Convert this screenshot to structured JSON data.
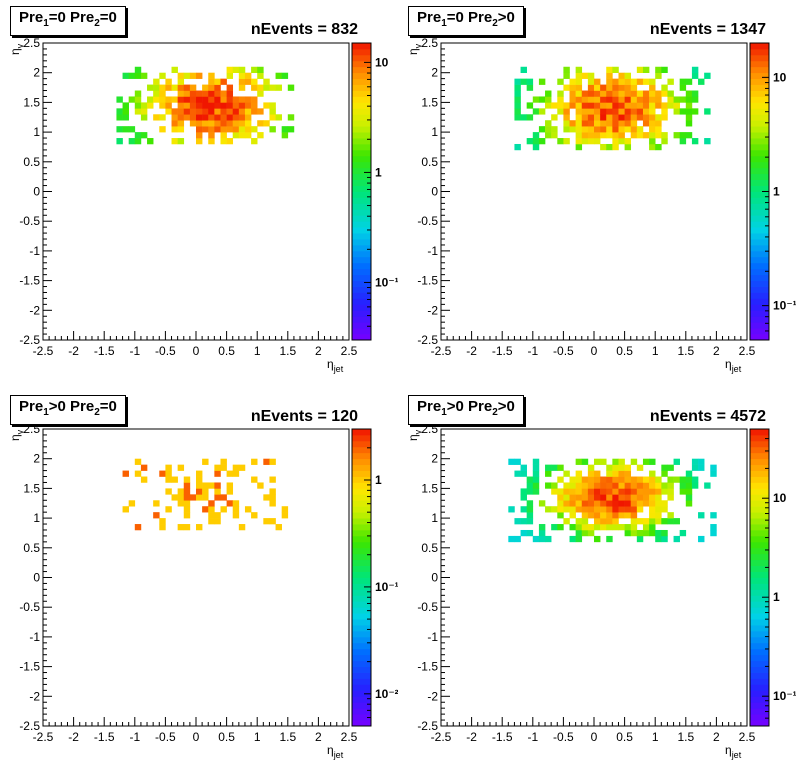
{
  "chart_data": [
    {
      "type": "heatmap",
      "label_main": "Pre",
      "label_sub1": "1",
      "label_mid": "=0  Pre",
      "label_sub2": "2",
      "label_tail": "=0",
      "nevents_text": "nEvents = 832",
      "xlabel_main": "η",
      "xlabel_sub": "jet",
      "ylabel_main": "η",
      "ylabel_sub": "γ",
      "xlim": [
        -2.5,
        2.5
      ],
      "ylim": [
        -2.5,
        2.5
      ],
      "xticks": [
        "-2.5",
        "-2",
        "-1.5",
        "-1",
        "-0.5",
        "0",
        "0.5",
        "1",
        "1.5",
        "2",
        "2.5"
      ],
      "yticks": [
        "-2.5",
        "-2",
        "-1.5",
        "-1",
        "-0.5",
        "0",
        "0.5",
        "1",
        "1.5",
        "2",
        "2.5"
      ],
      "z_scale": "log",
      "z_range": [
        0.03,
        15
      ],
      "z_tick_labels": [
        "10",
        "1",
        "10⁻¹"
      ],
      "z_tick_values": [
        10,
        1,
        0.1
      ],
      "cluster": {
        "cx": 0.25,
        "cy": 1.45,
        "sx": 0.85,
        "sy": 0.55,
        "xmin": -1.3,
        "xmax": 1.6,
        "ymin": 0.8,
        "ymax": 2.05,
        "peak": 13,
        "floor": 0.6,
        "occupancy": 0.7,
        "seed": 11
      }
    },
    {
      "type": "heatmap",
      "label_main": "Pre",
      "label_sub1": "1",
      "label_mid": "=0  Pre",
      "label_sub2": "2",
      "label_tail": ">0",
      "nevents_text": "nEvents = 1347",
      "xlabel_main": "η",
      "xlabel_sub": "jet",
      "ylabel_main": "η",
      "ylabel_sub": "γ",
      "xlim": [
        -2.5,
        2.5
      ],
      "ylim": [
        -2.5,
        2.5
      ],
      "xticks": [
        "-2.5",
        "-2",
        "-1.5",
        "-1",
        "-0.5",
        "0",
        "0.5",
        "1",
        "1.5",
        "2",
        "2.5"
      ],
      "yticks": [
        "-2.5",
        "-2",
        "-1.5",
        "-1",
        "-0.5",
        "0",
        "0.5",
        "1",
        "1.5",
        "2",
        "2.5"
      ],
      "z_scale": "log",
      "z_range": [
        0.05,
        20
      ],
      "z_tick_labels": [
        "10",
        "1",
        "10⁻¹"
      ],
      "z_tick_values": [
        10,
        1,
        0.1
      ],
      "cluster": {
        "cx": 0.3,
        "cy": 1.4,
        "sx": 0.85,
        "sy": 0.55,
        "xmin": -1.3,
        "xmax": 1.9,
        "ymin": 0.75,
        "ymax": 2.05,
        "peak": 16,
        "floor": 0.6,
        "occupancy": 0.75,
        "seed": 23
      }
    },
    {
      "type": "heatmap",
      "label_main": "Pre",
      "label_sub1": "1",
      "label_mid": ">0  Pre",
      "label_sub2": "2",
      "label_tail": "=0",
      "nevents_text": "nEvents = 120",
      "xlabel_main": "η",
      "xlabel_sub": "jet",
      "ylabel_main": "η",
      "ylabel_sub": "γ",
      "xlim": [
        -2.5,
        2.5
      ],
      "ylim": [
        -2.5,
        2.5
      ],
      "xticks": [
        "-2.5",
        "-2",
        "-1.5",
        "-1",
        "-0.5",
        "0",
        "0.5",
        "1",
        "1.5",
        "2",
        "2.5"
      ],
      "yticks": [
        "-2.5",
        "-2",
        "-1.5",
        "-1",
        "-0.5",
        "0",
        "0.5",
        "1",
        "1.5",
        "2",
        "2.5"
      ],
      "z_scale": "log",
      "z_range": [
        0.005,
        3
      ],
      "z_tick_labels": [
        "1",
        "10⁻¹",
        "10⁻²"
      ],
      "z_tick_values": [
        1,
        0.1,
        0.01
      ],
      "cluster": {
        "cx": 0.2,
        "cy": 1.45,
        "sx": 0.8,
        "sy": 0.5,
        "xmin": -1.2,
        "xmax": 1.5,
        "ymin": 0.85,
        "ymax": 2.0,
        "peak": 1.6,
        "floor": 1.0,
        "occupancy": 0.32,
        "seed": 37
      }
    },
    {
      "type": "heatmap",
      "label_main": "Pre",
      "label_sub1": "1",
      "label_mid": ">0  Pre",
      "label_sub2": "2",
      "label_tail": ">0",
      "nevents_text": "nEvents = 4572",
      "xlabel_main": "η",
      "xlabel_sub": "jet",
      "ylabel_main": "η",
      "ylabel_sub": "γ",
      "xlim": [
        -2.5,
        2.5
      ],
      "ylim": [
        -2.5,
        2.5
      ],
      "xticks": [
        "-2.5",
        "-2",
        "-1.5",
        "-1",
        "-0.5",
        "0",
        "0.5",
        "1",
        "1.5",
        "2",
        "2.5"
      ],
      "yticks": [
        "-2.5",
        "-2",
        "-1.5",
        "-1",
        "-0.5",
        "0",
        "0.5",
        "1",
        "1.5",
        "2",
        "2.5"
      ],
      "z_scale": "log",
      "z_range": [
        0.05,
        50
      ],
      "z_tick_labels": [
        "10",
        "1",
        "10⁻¹"
      ],
      "z_tick_values": [
        10,
        1,
        0.1
      ],
      "cluster": {
        "cx": 0.3,
        "cy": 1.35,
        "sx": 0.75,
        "sy": 0.42,
        "xmin": -1.4,
        "xmax": 2.0,
        "ymin": 0.65,
        "ymax": 2.0,
        "peak": 40,
        "floor": 0.7,
        "occupancy": 0.95,
        "seed": 51
      }
    }
  ]
}
